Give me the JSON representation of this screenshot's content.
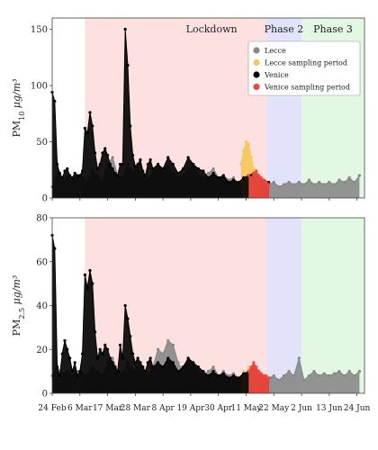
{
  "chart_data": [
    {
      "type": "area",
      "ylabel_main": "PM",
      "ylabel_sub": "10",
      "ylabel_unit": " μg/m³",
      "ylim": [
        0,
        160
      ],
      "yticks": [
        0,
        50,
        100,
        150
      ],
      "series": [
        {
          "name": "Lecce",
          "color": "#888888",
          "role": "area",
          "x": [
            0,
            2,
            4,
            6,
            8,
            10,
            12,
            14,
            16,
            18,
            20,
            22,
            24,
            26,
            28,
            30,
            32,
            34,
            36,
            38,
            40,
            42,
            44,
            46,
            48,
            50,
            52,
            54,
            56,
            58,
            60,
            62,
            64,
            66,
            68,
            70,
            72,
            74,
            76,
            78,
            80,
            82,
            84,
            86,
            88,
            90,
            92,
            94,
            96,
            98,
            100,
            102,
            104,
            106,
            108,
            110,
            112,
            114,
            116,
            118,
            120,
            122
          ],
          "y": [
            10,
            22,
            14,
            18,
            16,
            20,
            18,
            14,
            24,
            20,
            14,
            30,
            36,
            20,
            18,
            30,
            22,
            26,
            20,
            16,
            22,
            30,
            26,
            28,
            22,
            18,
            20,
            26,
            30,
            20,
            18,
            22,
            26,
            18,
            20,
            16,
            18,
            12,
            14,
            16,
            12,
            14,
            10,
            12,
            14,
            10,
            12,
            14,
            12,
            14,
            12,
            16,
            12,
            14,
            12,
            14,
            12,
            16,
            14,
            18,
            14,
            20
          ]
        },
        {
          "name": "Lecce sampling period",
          "color": "#f7c75a",
          "role": "overlay",
          "x": [
            75,
            76,
            77,
            78,
            79,
            80,
            81,
            82,
            83
          ],
          "y": [
            30,
            42,
            50,
            48,
            36,
            26,
            20,
            18,
            14
          ]
        },
        {
          "name": "Venice",
          "color": "#000000",
          "role": "area",
          "x": [
            0,
            1,
            2,
            3,
            4,
            5,
            6,
            7,
            8,
            9,
            10,
            11,
            12,
            13,
            14,
            15,
            16,
            17,
            18,
            19,
            20,
            21,
            22,
            23,
            24,
            25,
            26,
            27,
            28,
            29,
            30,
            31,
            32,
            33,
            34,
            35,
            36,
            37,
            38,
            39,
            40,
            42,
            44,
            46,
            48,
            50,
            52,
            54,
            56,
            58,
            60,
            62,
            64,
            66,
            68,
            70,
            72,
            74,
            76,
            78,
            80,
            82,
            84,
            86
          ],
          "y": [
            94,
            86,
            30,
            22,
            18,
            24,
            26,
            20,
            18,
            22,
            20,
            20,
            24,
            62,
            58,
            76,
            64,
            40,
            26,
            30,
            40,
            44,
            38,
            30,
            26,
            22,
            20,
            30,
            30,
            150,
            118,
            64,
            38,
            28,
            30,
            34,
            24,
            20,
            30,
            34,
            26,
            30,
            26,
            36,
            30,
            22,
            26,
            36,
            30,
            26,
            24,
            18,
            22,
            18,
            20,
            14,
            16,
            14,
            18,
            20,
            22,
            20,
            16,
            14
          ]
        },
        {
          "name": "Venice sampling period",
          "color": "#f0483e",
          "role": "overlay",
          "x": [
            78,
            79,
            80,
            81,
            82,
            83,
            84,
            85,
            86
          ],
          "y": [
            20,
            18,
            22,
            24,
            20,
            18,
            16,
            14,
            12
          ]
        }
      ]
    },
    {
      "type": "area",
      "ylabel_main": "PM",
      "ylabel_sub": "2.5",
      "ylabel_unit": " μg/m³",
      "ylim": [
        0,
        80
      ],
      "yticks": [
        0,
        20,
        40,
        60,
        80
      ],
      "series": [
        {
          "name": "Lecce",
          "color": "#888888",
          "role": "area",
          "x": [
            0,
            2,
            4,
            6,
            8,
            10,
            12,
            14,
            16,
            18,
            20,
            22,
            24,
            26,
            28,
            30,
            32,
            34,
            36,
            38,
            40,
            42,
            44,
            46,
            48,
            50,
            52,
            54,
            56,
            58,
            60,
            62,
            64,
            66,
            68,
            70,
            72,
            74,
            76,
            78,
            80,
            82,
            84,
            86,
            88,
            90,
            92,
            94,
            96,
            98,
            100,
            102,
            104,
            106,
            108,
            110,
            112,
            114,
            116,
            118,
            120,
            122
          ],
          "y": [
            8,
            12,
            9,
            10,
            8,
            10,
            9,
            8,
            12,
            10,
            8,
            14,
            16,
            10,
            9,
            14,
            10,
            12,
            10,
            8,
            12,
            20,
            18,
            24,
            22,
            14,
            10,
            16,
            14,
            10,
            8,
            10,
            12,
            8,
            10,
            8,
            9,
            7,
            8,
            9,
            7,
            8,
            6,
            7,
            8,
            6,
            8,
            10,
            8,
            16,
            6,
            8,
            10,
            8,
            9,
            8,
            9,
            10,
            8,
            10,
            8,
            10
          ]
        },
        {
          "name": "Lecce sampling period",
          "color": "#f7c75a",
          "role": "overlay",
          "x": [
            75,
            76,
            77,
            78,
            79,
            80,
            81,
            82,
            83
          ],
          "y": [
            8,
            10,
            9,
            12,
            11,
            10,
            9,
            8,
            7
          ]
        },
        {
          "name": "Venice",
          "color": "#000000",
          "role": "area",
          "x": [
            0,
            1,
            2,
            3,
            4,
            5,
            6,
            7,
            8,
            9,
            10,
            11,
            12,
            13,
            14,
            15,
            16,
            17,
            18,
            19,
            20,
            21,
            22,
            23,
            24,
            25,
            26,
            27,
            28,
            29,
            30,
            31,
            32,
            33,
            34,
            35,
            36,
            37,
            38,
            39,
            40,
            42,
            44,
            46,
            48,
            50,
            52,
            54,
            56,
            58,
            60,
            62,
            64,
            66,
            68,
            70,
            72,
            74,
            76,
            78,
            80,
            82,
            84,
            86
          ],
          "y": [
            72,
            66,
            12,
            8,
            18,
            24,
            20,
            16,
            10,
            14,
            8,
            10,
            18,
            54,
            48,
            56,
            50,
            28,
            16,
            20,
            18,
            22,
            20,
            16,
            14,
            12,
            10,
            22,
            16,
            40,
            34,
            26,
            18,
            14,
            16,
            14,
            12,
            10,
            14,
            16,
            12,
            14,
            12,
            16,
            14,
            10,
            12,
            16,
            14,
            12,
            10,
            8,
            10,
            8,
            9,
            7,
            8,
            7,
            9,
            10,
            12,
            10,
            8,
            7
          ]
        },
        {
          "name": "Venice sampling period",
          "color": "#f0483e",
          "role": "overlay",
          "x": [
            78,
            79,
            80,
            81,
            82,
            83,
            84,
            85,
            86
          ],
          "y": [
            10,
            12,
            14,
            12,
            10,
            9,
            8,
            8,
            7
          ]
        }
      ]
    }
  ],
  "x_axis": {
    "ticks": [
      {
        "x": 0,
        "label": "24 Feb"
      },
      {
        "x": 11,
        "label": "6 Mar"
      },
      {
        "x": 22,
        "label": "17 Mar"
      },
      {
        "x": 33,
        "label": "28 Mar"
      },
      {
        "x": 44,
        "label": "8 Apr"
      },
      {
        "x": 55,
        "label": "19 Apr"
      },
      {
        "x": 66,
        "label": "30 Apr"
      },
      {
        "x": 77,
        "label": "11 May"
      },
      {
        "x": 88,
        "label": "22 May"
      },
      {
        "x": 99,
        "label": "2 Jun"
      },
      {
        "x": 110,
        "label": "13 Jun"
      },
      {
        "x": 121,
        "label": "24 Jun"
      }
    ],
    "xlim": [
      0,
      124
    ]
  },
  "periods": [
    {
      "label": "",
      "start": 0,
      "end": 13,
      "color": "#ffffff"
    },
    {
      "label": "Lockdown",
      "start": 13,
      "end": 85,
      "color": "#fde0e0"
    },
    {
      "label": "Phase 2",
      "start": 85,
      "end": 99,
      "color": "#e2e2fb"
    },
    {
      "label": "Phase 3",
      "start": 99,
      "end": 124,
      "color": "#e2f8e2"
    }
  ],
  "legend": [
    {
      "label": "Lecce",
      "color": "#888888"
    },
    {
      "label": "Lecce sampling period",
      "color": "#f7c75a"
    },
    {
      "label": "Venice",
      "color": "#000000"
    },
    {
      "label": "Venice sampling period",
      "color": "#f0483e"
    }
  ]
}
